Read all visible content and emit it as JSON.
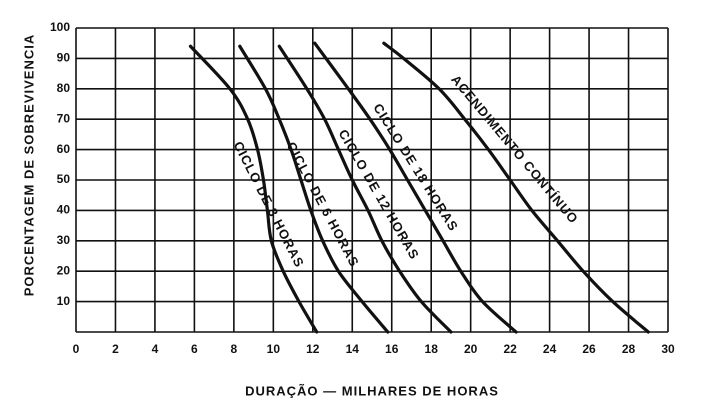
{
  "chart_data": {
    "type": "line",
    "xlabel": "DURAÇÃO — MILHARES DE HORAS",
    "ylabel": "PORCENTAGEM DE SOBREVIVENCIA",
    "xlim": [
      0,
      30
    ],
    "xticks": [
      0,
      2,
      4,
      6,
      8,
      10,
      12,
      14,
      16,
      18,
      20,
      22,
      24,
      26,
      28,
      30
    ],
    "ylim": [
      0,
      100
    ],
    "yticks": [
      10,
      20,
      30,
      40,
      50,
      60,
      70,
      80,
      90,
      100
    ],
    "grid": true,
    "color": "#111111",
    "series": [
      {
        "name": "CICLO DE 3 HORAS",
        "x": [
          5.8,
          7.8,
          8.7,
          9.2,
          9.5,
          9.7,
          9.9,
          10.5,
          11.3,
          12.2
        ],
        "values": [
          94,
          80,
          70,
          60,
          50,
          40,
          30,
          20,
          10,
          0
        ]
      },
      {
        "name": "CICLO DE 6 HORAS",
        "x": [
          8.3,
          9.6,
          10.3,
          10.9,
          11.4,
          11.9,
          12.5,
          13.3,
          14.5,
          15.8
        ],
        "values": [
          94,
          80,
          70,
          60,
          50,
          40,
          30,
          20,
          10,
          0
        ]
      },
      {
        "name": "CICLO DE 12 HORAS",
        "x": [
          10.3,
          11.7,
          12.6,
          13.3,
          14.0,
          14.8,
          15.5,
          16.4,
          17.5,
          19.0
        ],
        "values": [
          94,
          80,
          70,
          60,
          50,
          40,
          30,
          20,
          10,
          0
        ]
      },
      {
        "name": "CICLO DE 18 HORAS",
        "x": [
          12.1,
          13.8,
          14.9,
          15.9,
          16.8,
          17.7,
          18.6,
          19.5,
          20.6,
          22.3
        ],
        "values": [
          95,
          80,
          70,
          60,
          50,
          40,
          30,
          20,
          10,
          0
        ]
      },
      {
        "name": "ACENDIMENTO CONTÍNUO",
        "x": [
          15.6,
          16.6,
          18.4,
          19.7,
          20.9,
          22.0,
          23.1,
          24.4,
          25.7,
          27.2,
          29.0
        ],
        "values": [
          95,
          90,
          80,
          70,
          60,
          50,
          40,
          30,
          20,
          10,
          0
        ]
      }
    ]
  }
}
